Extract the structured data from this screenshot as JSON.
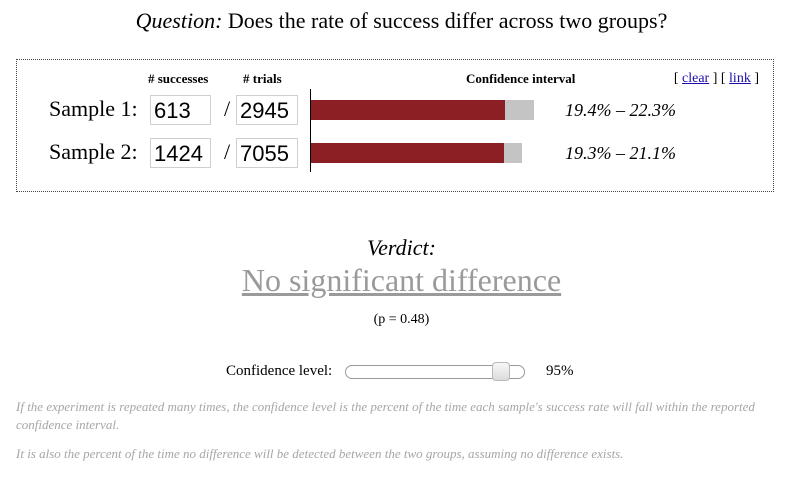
{
  "question": {
    "label": "Question:",
    "text": "Does the rate of success differ across two groups?"
  },
  "columns": {
    "successes": "# successes",
    "trials": "# trials",
    "ci": "Confidence interval"
  },
  "links": {
    "open_bracket": "[",
    "clear": "clear",
    "middle": "] [",
    "link": "link",
    "close_bracket": "]"
  },
  "slash": "/",
  "samples": [
    {
      "label": "Sample 1:",
      "successes": "613",
      "trials": "2945",
      "rate": 0.208,
      "ci_low": 0.194,
      "ci_high": 0.223,
      "ci_text": "19.4% – 22.3%"
    },
    {
      "label": "Sample 2:",
      "successes": "1424",
      "trials": "7055",
      "rate": 0.202,
      "ci_low": 0.193,
      "ci_high": 0.211,
      "ci_text": "19.3% – 21.1%"
    }
  ],
  "verdict": {
    "label": "Verdict:",
    "result": "No significant difference",
    "p_value": "(p = 0.48)"
  },
  "confidence": {
    "label": "Confidence level:",
    "value": 95,
    "value_text": "95%"
  },
  "notes": [
    "If the experiment is repeated many times, the confidence level is the percent of the time each sample's success rate will fall within the reported confidence interval.",
    "It is also the percent of the time no difference will be detected between the two groups, assuming no difference exists."
  ],
  "colors": {
    "bar": "#8b1f23",
    "ci": "#c4c4c4",
    "verdict": "#9a9a9a",
    "note": "#a6a6a6"
  }
}
